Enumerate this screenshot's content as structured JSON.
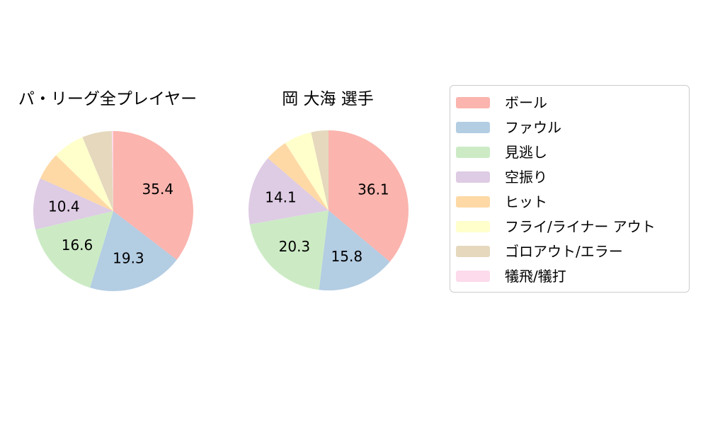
{
  "chart_data": [
    {
      "type": "pie",
      "title": "パ・リーグ全プレイヤー",
      "labels": [
        "ボール",
        "ファウル",
        "見逃し",
        "空振り",
        "ヒット",
        "フライ/ライナー アウト",
        "ゴロアウト/エラー",
        "犠飛/犠打"
      ],
      "values": [
        35.4,
        19.3,
        16.6,
        10.4,
        5.6,
        6.4,
        6.0,
        0.3
      ],
      "colors": [
        "#fbb4ae",
        "#b3cde3",
        "#ccebc5",
        "#decbe4",
        "#fed9a6",
        "#ffffcc",
        "#e5d8bd",
        "#fddaec"
      ],
      "start_angle": "top",
      "direction": "clockwise",
      "label_threshold_pct": 10,
      "shown_value_labels": [
        "35.4",
        "19.3",
        "16.6",
        "10.4"
      ]
    },
    {
      "type": "pie",
      "title": "岡 大海 選手",
      "labels": [
        "ボール",
        "ファウル",
        "見逃し",
        "空振り",
        "ヒット",
        "フライ/ライナー アウト",
        "ゴロアウト/エラー",
        "犠飛/犠打"
      ],
      "values": [
        36.1,
        15.8,
        20.3,
        14.1,
        4.6,
        5.6,
        3.5,
        0.0
      ],
      "colors": [
        "#fbb4ae",
        "#b3cde3",
        "#ccebc5",
        "#decbe4",
        "#fed9a6",
        "#ffffcc",
        "#e5d8bd",
        "#fddaec"
      ],
      "start_angle": "top",
      "direction": "clockwise",
      "label_threshold_pct": 10,
      "shown_value_labels": [
        "36.1",
        "15.8",
        "20.3",
        "14.1"
      ]
    }
  ],
  "legend": {
    "position": "right",
    "items": [
      {
        "label": "ボール",
        "color": "#fbb4ae"
      },
      {
        "label": "ファウル",
        "color": "#b3cde3"
      },
      {
        "label": "見逃し",
        "color": "#ccebc5"
      },
      {
        "label": "空振り",
        "color": "#decbe4"
      },
      {
        "label": "ヒット",
        "color": "#fed9a6"
      },
      {
        "label": "フライ/ライナー アウト",
        "color": "#ffffcc"
      },
      {
        "label": "ゴロアウト/エラー",
        "color": "#e5d8bd"
      },
      {
        "label": "犠飛/犠打",
        "color": "#fddaec"
      }
    ]
  }
}
